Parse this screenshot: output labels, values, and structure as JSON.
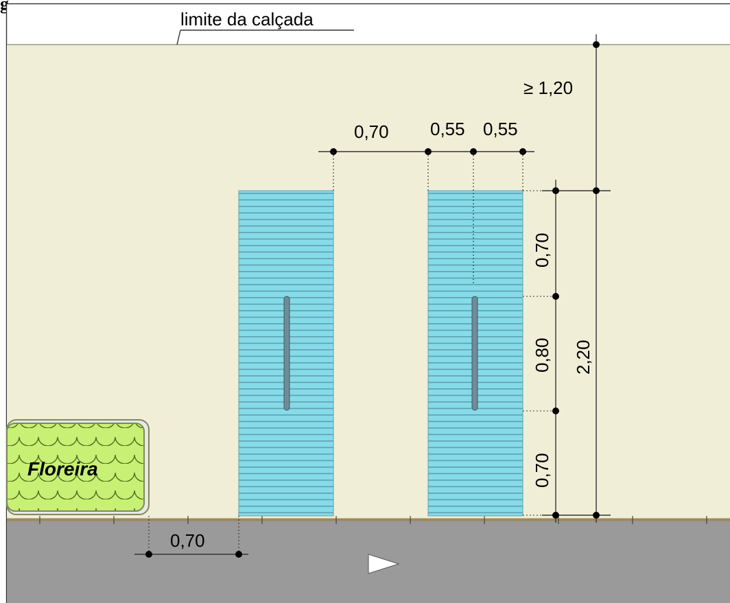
{
  "figure": {
    "caption_fragment": "g",
    "boundary_label": "limite da calçada",
    "planter_label": "Floreira",
    "direction_arrow": "play-arrow-icon",
    "dimensions": {
      "top_clearance": "≥ 1,20",
      "gap_between_tactile": "0,70",
      "half_width_left": "0,55",
      "half_width_right": "0,55",
      "segment_top": "0,70",
      "segment_middle": "0,80",
      "segment_bottom": "0,70",
      "total_height": "2,20",
      "planter_gap": "0,70"
    },
    "colors": {
      "sidewalk": "#f1eed8",
      "road": "#9a9a9a",
      "tactile_fill": "#86dbe9",
      "tactile_stripe": "#5f9fae",
      "planter_fill": "#c7f074",
      "planter_border": "#7d8a5a",
      "handle": "#6f8c98"
    }
  }
}
